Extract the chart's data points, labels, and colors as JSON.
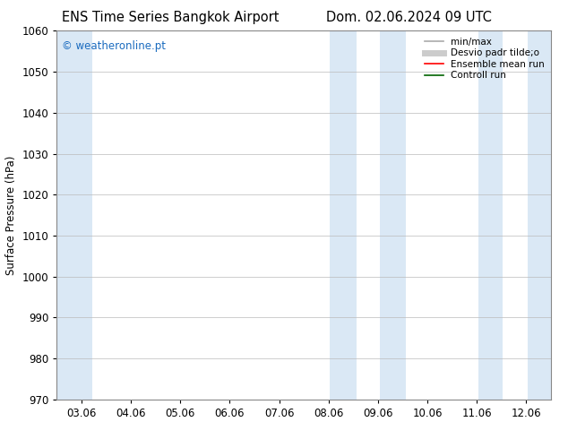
{
  "title_left": "ENS Time Series Bangkok Airport",
  "title_right": "Dom. 02.06.2024 09 UTC",
  "ylabel": "Surface Pressure (hPa)",
  "ylim": [
    970,
    1060
  ],
  "yticks": [
    970,
    980,
    990,
    1000,
    1010,
    1020,
    1030,
    1040,
    1050,
    1060
  ],
  "xlim_start": -0.5,
  "xlim_end": 9.5,
  "xtick_labels": [
    "03.06",
    "04.06",
    "05.06",
    "06.06",
    "07.06",
    "08.06",
    "09.06",
    "10.06",
    "11.06",
    "12.06"
  ],
  "xtick_positions": [
    0,
    1,
    2,
    3,
    4,
    5,
    6,
    7,
    8,
    9
  ],
  "shaded_bands": [
    {
      "x_start": -0.5,
      "x_end": 0.22
    },
    {
      "x_start": 5.03,
      "x_end": 5.56
    },
    {
      "x_start": 6.03,
      "x_end": 6.56
    },
    {
      "x_start": 8.03,
      "x_end": 8.53
    },
    {
      "x_start": 9.03,
      "x_end": 9.5
    }
  ],
  "shade_color": "#dae8f5",
  "background_color": "#ffffff",
  "grid_color": "#bbbbbb",
  "watermark_text": "© weatheronline.pt",
  "watermark_color": "#1a6bbf",
  "legend_items": [
    {
      "label": "min/max",
      "color": "#aaaaaa",
      "lw": 1.2
    },
    {
      "label": "Desvio padr tilde;o",
      "color": "#cccccc",
      "lw": 5
    },
    {
      "label": "Ensemble mean run",
      "color": "#ff0000",
      "lw": 1.2
    },
    {
      "label": "Controll run",
      "color": "#006400",
      "lw": 1.2
    }
  ],
  "title_fontsize": 10.5,
  "tick_fontsize": 8.5,
  "ylabel_fontsize": 8.5,
  "watermark_fontsize": 8.5,
  "legend_fontsize": 7.5
}
